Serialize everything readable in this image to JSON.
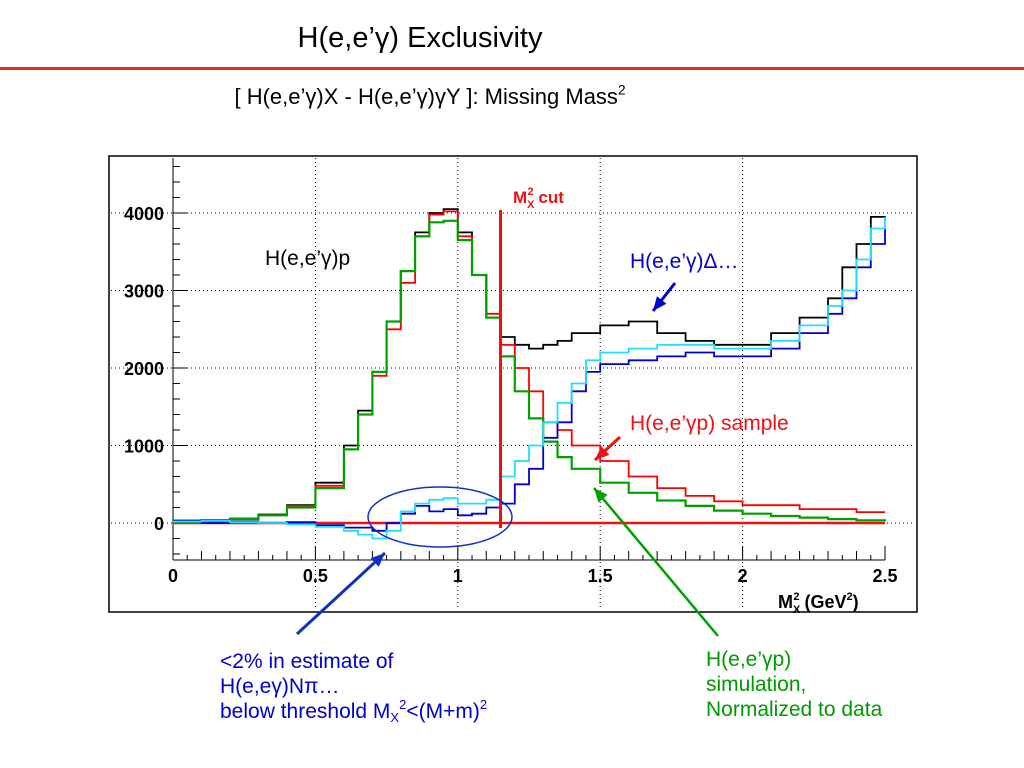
{
  "slide": {
    "title": "H(e,e’γ)  Exclusivity",
    "subtitle_main": "[ H(e,e’γ)X - H(e,e’γ)γY ]:  Missing Mass",
    "subtitle_sup": "2",
    "rule_color": "#e03020"
  },
  "notes": {
    "blue_line1": "<2% in estimate of",
    "blue_line2": "H(e,eγ)Nπ…",
    "blue_line3_pre": "below threshold M",
    "blue_line3_sub": "X",
    "blue_line3_sup": "2",
    "blue_line3_mid": "<(M+m)",
    "blue_line3_sup2": "2",
    "green_line1": "H(e,e’γp)",
    "green_line2": "simulation,",
    "green_line3": "Normalized to data"
  },
  "chart_data": {
    "type": "line",
    "xlabel": "M_X^2  (GeV^2)",
    "xlim": [
      0,
      2.5
    ],
    "ylim": [
      -500,
      4800
    ],
    "x_ticks": [
      "0",
      "0.5",
      "1",
      "1.5",
      "2",
      "2.5"
    ],
    "y_ticks": [
      "0",
      "1000",
      "2000",
      "3000",
      "4000"
    ],
    "grid": true,
    "cut": {
      "label": "M_X^2 cut",
      "x": 1.15
    },
    "annotations": {
      "delta": "H(e,e’γ)Δ…",
      "ep": "H(e,e’γ)p",
      "sample": "H(e,e’γp) sample"
    },
    "colors": {
      "black": "#000000",
      "red": "#ff0000",
      "green": "#00a000",
      "blue": "#0000cc",
      "cyan": "#22ddff",
      "ellipse": "#1030c0",
      "cut": "#ee1111"
    },
    "series": [
      {
        "color": "black",
        "x": [
          0,
          0.1,
          0.2,
          0.3,
          0.4,
          0.5,
          0.6,
          0.65,
          0.7,
          0.75,
          0.8,
          0.85,
          0.9,
          0.95,
          1.0,
          1.05,
          1.1,
          1.15,
          1.2,
          1.25,
          1.3,
          1.35,
          1.4,
          1.5,
          1.6,
          1.7,
          1.8,
          1.9,
          2.0,
          2.1,
          2.2,
          2.3,
          2.35,
          2.4,
          2.45,
          2.5
        ],
        "y": [
          30,
          40,
          60,
          110,
          230,
          520,
          1000,
          1450,
          1950,
          2600,
          3250,
          3750,
          4000,
          4050,
          3750,
          3200,
          2650,
          2400,
          2300,
          2250,
          2300,
          2350,
          2450,
          2550,
          2600,
          2450,
          2350,
          2300,
          2300,
          2450,
          2650,
          2900,
          3300,
          3600,
          3950,
          3900
        ]
      },
      {
        "color": "red",
        "x": [
          0,
          0.1,
          0.2,
          0.3,
          0.4,
          0.5,
          0.6,
          0.65,
          0.7,
          0.75,
          0.8,
          0.85,
          0.9,
          0.95,
          1.0,
          1.05,
          1.1,
          1.15,
          1.2,
          1.25,
          1.3,
          1.35,
          1.4,
          1.5,
          1.6,
          1.7,
          1.8,
          1.9,
          2.0,
          2.2,
          2.4,
          2.5
        ],
        "y": [
          30,
          40,
          60,
          100,
          220,
          480,
          950,
          1400,
          1900,
          2500,
          3100,
          3700,
          3980,
          4020,
          3700,
          3200,
          2700,
          2300,
          2000,
          1700,
          1300,
          1200,
          1000,
          800,
          600,
          450,
          350,
          280,
          230,
          180,
          140,
          140
        ]
      },
      {
        "color": "green",
        "x": [
          0,
          0.1,
          0.2,
          0.3,
          0.4,
          0.5,
          0.6,
          0.65,
          0.7,
          0.75,
          0.8,
          0.85,
          0.9,
          0.95,
          1.0,
          1.05,
          1.1,
          1.15,
          1.2,
          1.25,
          1.3,
          1.35,
          1.4,
          1.5,
          1.6,
          1.7,
          1.8,
          1.9,
          2.0,
          2.1,
          2.2,
          2.3,
          2.4,
          2.5
        ],
        "y": [
          10,
          20,
          50,
          100,
          200,
          450,
          950,
          1400,
          1950,
          2600,
          3250,
          3700,
          3880,
          3900,
          3650,
          3200,
          2650,
          2150,
          1700,
          1350,
          1050,
          850,
          700,
          520,
          390,
          290,
          220,
          160,
          120,
          90,
          70,
          50,
          35,
          25
        ]
      },
      {
        "color": "blue",
        "x": [
          0,
          0.1,
          0.2,
          0.3,
          0.4,
          0.5,
          0.6,
          0.7,
          0.75,
          0.8,
          0.85,
          0.9,
          0.95,
          1.0,
          1.05,
          1.1,
          1.15,
          1.2,
          1.25,
          1.3,
          1.35,
          1.4,
          1.45,
          1.5,
          1.6,
          1.7,
          1.8,
          1.9,
          2.0,
          2.1,
          2.2,
          2.3,
          2.35,
          2.4,
          2.45,
          2.5
        ],
        "y": [
          30,
          0,
          20,
          0,
          10,
          -30,
          -60,
          -100,
          0,
          120,
          220,
          150,
          180,
          100,
          120,
          200,
          250,
          500,
          700,
          1100,
          1300,
          1700,
          1950,
          2050,
          2100,
          2150,
          2200,
          2150,
          2150,
          2250,
          2450,
          2700,
          2900,
          3300,
          3600,
          3800
        ]
      },
      {
        "color": "cyan",
        "x": [
          0,
          0.1,
          0.2,
          0.3,
          0.4,
          0.5,
          0.6,
          0.65,
          0.7,
          0.75,
          0.8,
          0.85,
          0.9,
          0.95,
          1.0,
          1.05,
          1.1,
          1.15,
          1.2,
          1.25,
          1.3,
          1.35,
          1.4,
          1.45,
          1.5,
          1.6,
          1.7,
          1.8,
          1.9,
          2.0,
          2.1,
          2.2,
          2.3,
          2.35,
          2.4,
          2.45,
          2.5
        ],
        "y": [
          20,
          30,
          10,
          0,
          -20,
          -50,
          -100,
          -150,
          -200,
          -100,
          150,
          250,
          300,
          320,
          250,
          250,
          300,
          600,
          800,
          1000,
          1300,
          1550,
          1800,
          2100,
          2200,
          2250,
          2300,
          2300,
          2250,
          2250,
          2350,
          2550,
          2800,
          3000,
          3400,
          3800,
          3950
        ]
      }
    ]
  }
}
